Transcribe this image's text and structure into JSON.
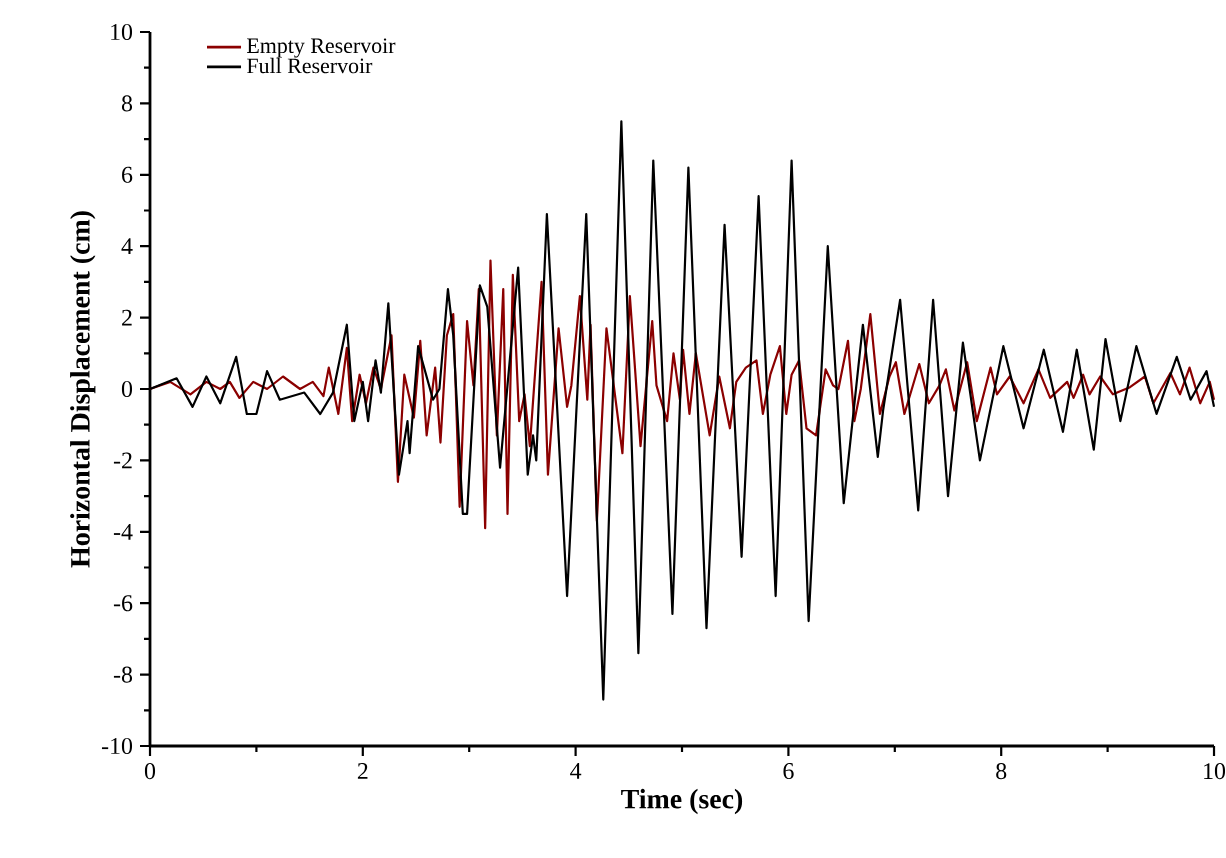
{
  "chart_data": {
    "type": "line",
    "xlabel": "Time (sec)",
    "ylabel": "Horizontal Displacement (cm)",
    "xlim": [
      0,
      10
    ],
    "xticks": [
      0,
      2,
      4,
      6,
      8,
      10
    ],
    "ylim": [
      -10,
      10
    ],
    "yticks": [
      -10,
      -8,
      -6,
      -4,
      -2,
      0,
      2,
      4,
      6,
      8,
      10
    ],
    "legend": "top left",
    "grid": false,
    "marker": "none",
    "line_style": "solid",
    "series": [
      {
        "name": "Empty Reservoir",
        "color": "#8b0000",
        "x": [
          0,
          0.19,
          0.38,
          0.53,
          0.66,
          0.75,
          0.84,
          0.97,
          1.1,
          1.25,
          1.41,
          1.53,
          1.63,
          1.68,
          1.77,
          1.85,
          1.9,
          1.97,
          2.03,
          2.1,
          2.17,
          2.27,
          2.33,
          2.39,
          2.48,
          2.54,
          2.6,
          2.68,
          2.73,
          2.79,
          2.85,
          2.91,
          2.98,
          3.04,
          3.09,
          3.15,
          3.2,
          3.26,
          3.32,
          3.36,
          3.41,
          3.47,
          3.52,
          3.57,
          3.68,
          3.74,
          3.84,
          3.92,
          3.96,
          4.04,
          4.11,
          4.14,
          4.2,
          4.29,
          4.44,
          4.51,
          4.61,
          4.72,
          4.76,
          4.86,
          4.92,
          4.98,
          5.01,
          5.07,
          5.13,
          5.26,
          5.35,
          5.45,
          5.51,
          5.6,
          5.7,
          5.76,
          5.83,
          5.92,
          5.98,
          6.03,
          6.1,
          6.17,
          6.26,
          6.35,
          6.42,
          6.47,
          6.56,
          6.62,
          6.68,
          6.77,
          6.86,
          6.95,
          7.01,
          7.09,
          7.23,
          7.32,
          7.42,
          7.48,
          7.56,
          7.68,
          7.77,
          7.9,
          7.96,
          8.08,
          8.21,
          8.35,
          8.46,
          8.62,
          8.68,
          8.77,
          8.83,
          8.93,
          9.05,
          9.21,
          9.35,
          9.43,
          9.59,
          9.68,
          9.77,
          9.87,
          9.96,
          10
        ],
        "values": [
          0,
          0.2,
          -0.15,
          0.2,
          0,
          0.2,
          -0.25,
          0.2,
          0,
          0.35,
          0,
          0.2,
          -0.2,
          0.6,
          -0.7,
          1.15,
          -0.9,
          0.4,
          -0.4,
          0.6,
          0,
          1.5,
          -2.6,
          0.4,
          -0.8,
          1.35,
          -1.3,
          0.6,
          -1.5,
          1.5,
          2.1,
          -3.3,
          1.9,
          0.1,
          2.8,
          -3.9,
          3.6,
          -1.3,
          2.8,
          -3.5,
          3.2,
          -0.9,
          -0.15,
          -1.6,
          3.0,
          -2.4,
          1.7,
          -0.5,
          0.1,
          2.6,
          -0.3,
          1.8,
          -3.7,
          1.7,
          -1.8,
          2.6,
          -1.6,
          1.9,
          0.1,
          -0.9,
          1.0,
          -0.3,
          1.1,
          -0.7,
          1.0,
          -1.3,
          0.35,
          -1.1,
          0.2,
          0.6,
          0.8,
          -0.7,
          0.4,
          1.2,
          -0.7,
          0.4,
          0.8,
          -1.1,
          -1.3,
          0.55,
          0.1,
          0,
          1.35,
          -0.9,
          0,
          2.1,
          -0.7,
          0.35,
          0.75,
          -0.7,
          0.7,
          -0.4,
          0.1,
          0.55,
          -0.6,
          0.75,
          -0.9,
          0.6,
          -0.15,
          0.35,
          -0.4,
          0.55,
          -0.25,
          0.2,
          -0.25,
          0.4,
          -0.15,
          0.35,
          -0.15,
          0.05,
          0.35,
          -0.4,
          0.45,
          -0.15,
          0.6,
          -0.4,
          0.2,
          -0.3
        ]
      },
      {
        "name": "Full Reservoir",
        "color": "#000000",
        "x": [
          0,
          0.25,
          0.4,
          0.53,
          0.66,
          0.81,
          0.91,
          1.0,
          1.1,
          1.22,
          1.45,
          1.6,
          1.72,
          1.85,
          1.92,
          2.0,
          2.05,
          2.12,
          2.17,
          2.24,
          2.34,
          2.42,
          2.44,
          2.52,
          2.66,
          2.72,
          2.8,
          2.85,
          2.94,
          2.98,
          3.1,
          3.17,
          3.29,
          3.46,
          3.55,
          3.6,
          3.63,
          3.73,
          3.92,
          4.1,
          4.26,
          4.43,
          4.59,
          4.73,
          4.91,
          5.06,
          5.23,
          5.4,
          5.56,
          5.72,
          5.88,
          6.03,
          6.19,
          6.37,
          6.52,
          6.7,
          6.84,
          6.89,
          7.05,
          7.22,
          7.36,
          7.5,
          7.64,
          7.8,
          8.02,
          8.21,
          8.4,
          8.58,
          8.71,
          8.87,
          8.98,
          9.12,
          9.27,
          9.46,
          9.65,
          9.78,
          9.93,
          10
        ],
        "values": [
          0,
          0.3,
          -0.5,
          0.35,
          -0.4,
          0.9,
          -0.7,
          -0.7,
          0.5,
          -0.3,
          -0.1,
          -0.7,
          -0.1,
          1.8,
          -0.9,
          0.2,
          -0.9,
          0.8,
          -0.1,
          2.4,
          -2.4,
          -0.9,
          -1.8,
          1.2,
          -0.3,
          0,
          2.8,
          1.5,
          -3.5,
          -3.5,
          2.9,
          2.3,
          -2.2,
          3.4,
          -2.4,
          -1.3,
          -2.0,
          4.9,
          -5.8,
          4.9,
          -8.7,
          7.5,
          -7.4,
          6.4,
          -6.3,
          6.2,
          -6.7,
          4.6,
          -4.7,
          5.4,
          -5.8,
          6.4,
          -6.5,
          4.0,
          -3.2,
          1.8,
          -1.9,
          -0.6,
          2.5,
          -3.4,
          2.5,
          -3.0,
          1.3,
          -2.0,
          1.2,
          -1.1,
          1.1,
          -1.2,
          1.1,
          -1.7,
          1.4,
          -0.9,
          1.2,
          -0.7,
          0.9,
          -0.3,
          0.5,
          -0.5
        ]
      }
    ]
  }
}
